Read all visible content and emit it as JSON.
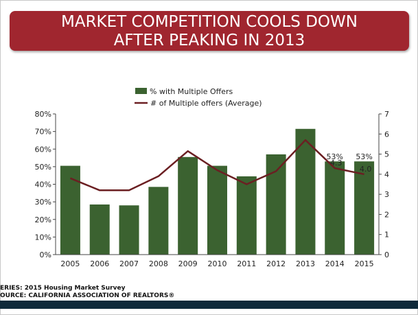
{
  "banner": {
    "title_line1": "MARKET COMPETITION COOLS DOWN",
    "title_line2": "AFTER PEAKING IN 2013"
  },
  "footer": {
    "series": "ERIES: 2015 Housing Market Survey",
    "source": "OURCE:  CALIFORNIA ASSOCIATION OF REALTORS®"
  },
  "colors": {
    "banner": "#a0262f",
    "bars": "#3b6230",
    "line": "#6b1f22",
    "footer_bar": "#0f2a3a"
  },
  "chart_data": {
    "type": "bar",
    "categories": [
      "2005",
      "2006",
      "2007",
      "2008",
      "2009",
      "2010",
      "2011",
      "2012",
      "2013",
      "2014",
      "2015"
    ],
    "series": [
      {
        "name": "% with Multiple Offers",
        "type": "bar",
        "axis": "left",
        "values": [
          50.5,
          28.5,
          28,
          38.5,
          55.5,
          50.5,
          44.5,
          57,
          71.5,
          53,
          53
        ]
      },
      {
        "name": "# of Multiple offers (Average)",
        "type": "line",
        "axis": "right",
        "values": [
          3.8,
          3.2,
          3.2,
          3.9,
          5.15,
          4.2,
          3.5,
          4.15,
          5.7,
          4.3,
          4.0
        ]
      }
    ],
    "left_axis": {
      "ylim": [
        0,
        80
      ],
      "ticks": [
        "0%",
        "10%",
        "20%",
        "30%",
        "40%",
        "50%",
        "60%",
        "70%",
        "80%"
      ]
    },
    "right_axis": {
      "ylim": [
        0,
        7
      ],
      "ticks": [
        "0",
        "1",
        "2",
        "3",
        "4",
        "5",
        "6",
        "7"
      ]
    },
    "data_labels": [
      {
        "category": "2014",
        "bar_label": "53%",
        "line_label": "4.3"
      },
      {
        "category": "2015",
        "bar_label": "53%",
        "line_label": "4.0"
      }
    ],
    "legend_position": "top-center",
    "grid": false
  }
}
